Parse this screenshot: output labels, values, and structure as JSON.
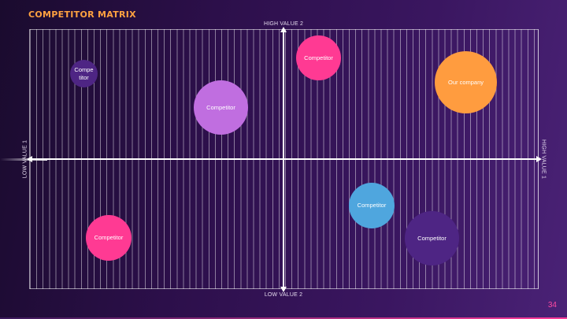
{
  "slide": {
    "title": "COMPETITOR MATRIX",
    "page_number": "34"
  },
  "axes": {
    "top_label": "HIGH VALUE 2",
    "bottom_label": "LOW VALUE 2",
    "left_label": "LOW VALUE 1",
    "right_label": "HIGH VALUE 1"
  },
  "colors": {
    "title": "#ffa140",
    "background_start": "#1a0b2e",
    "background_end": "#4a2276",
    "page_number": "#ff4aa2"
  },
  "bubbles": [
    {
      "label": "Compe\ntitor",
      "color": "#4e2584"
    },
    {
      "label": "Competitor",
      "color": "#ff3a93"
    },
    {
      "label": "Our company",
      "color": "#ff9c3f"
    },
    {
      "label": "Competitor",
      "color": "#c06ee0"
    },
    {
      "label": "Competitor",
      "color": "#4fa6de"
    },
    {
      "label": "Competitor",
      "color": "#4e2584"
    },
    {
      "label": "Competitor",
      "color": "#ff3a93"
    }
  ]
}
